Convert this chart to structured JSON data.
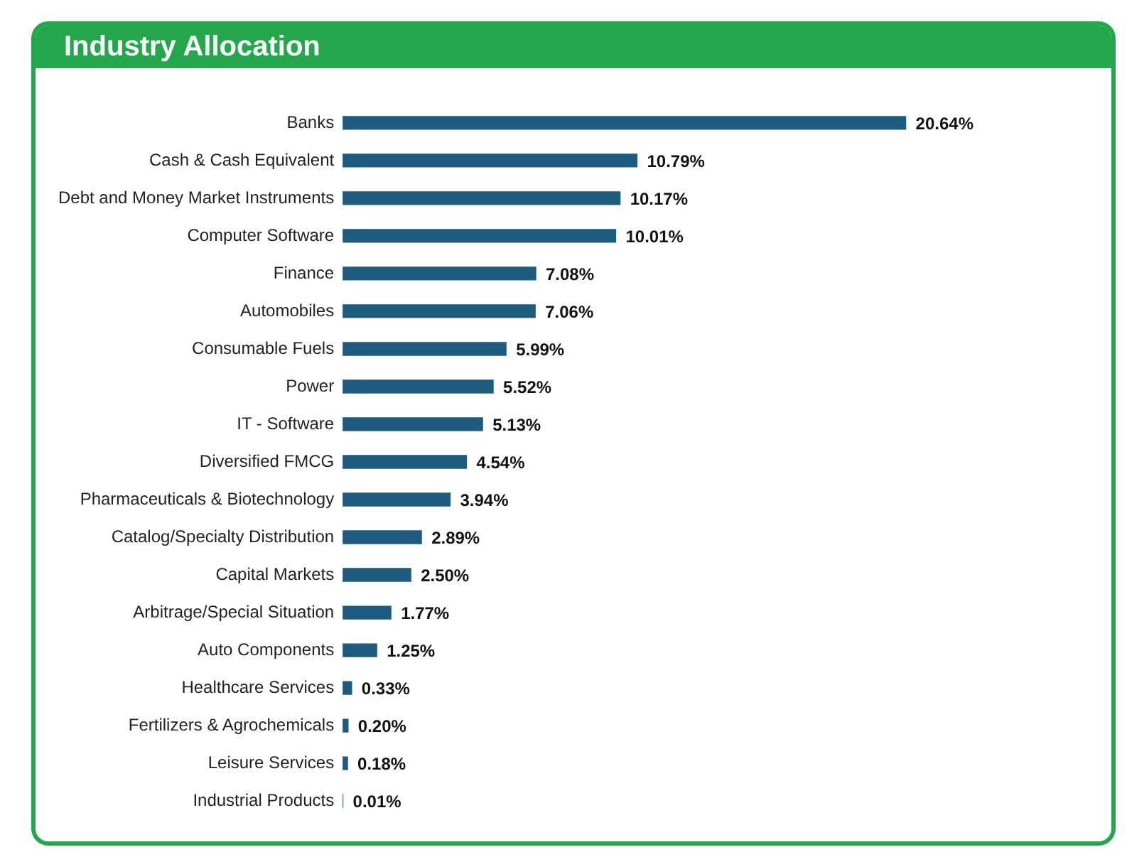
{
  "chart_data": {
    "type": "bar",
    "orientation": "horizontal",
    "title": "Industry Allocation",
    "categories": [
      "Banks",
      "Cash & Cash Equivalent",
      "Debt and Money Market Instruments",
      "Computer Software",
      "Finance",
      "Automobiles",
      "Consumable Fuels",
      "Power",
      "IT - Software",
      "Diversified FMCG",
      "Pharmaceuticals & Biotechnology",
      "Catalog/Specialty Distribution",
      "Capital Markets",
      "Arbitrage/Special Situation",
      "Auto Components",
      "Healthcare Services",
      "Fertilizers & Agrochemicals",
      "Leisure Services",
      "Industrial Products"
    ],
    "values": [
      20.64,
      10.79,
      10.17,
      10.01,
      7.08,
      7.06,
      5.99,
      5.52,
      5.13,
      4.54,
      3.94,
      2.89,
      2.5,
      1.77,
      1.25,
      0.33,
      0.2,
      0.18,
      0.01
    ],
    "value_labels": [
      "20.64%",
      "10.79%",
      "10.17%",
      "10.01%",
      "7.08%",
      "7.06%",
      "5.99%",
      "5.52%",
      "5.13%",
      "4.54%",
      "3.94%",
      "2.89%",
      "2.50%",
      "1.77%",
      "1.25%",
      "0.33%",
      "0.20%",
      "0.18%",
      "0.01%"
    ],
    "color": "#1d5c80",
    "legend": false
  }
}
